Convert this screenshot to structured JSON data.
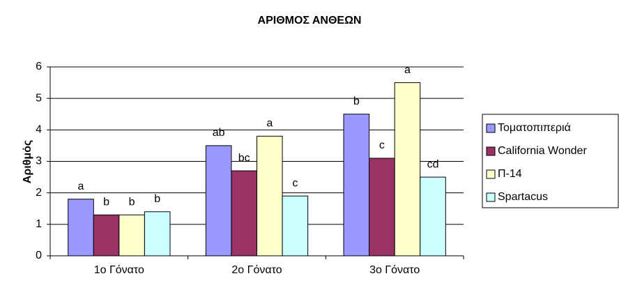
{
  "chart_data": {
    "type": "bar",
    "title": "ΑΡΙΘΜΟΣ ΑΝΘΕΩΝ",
    "y_label": "Αριθμός",
    "categories": [
      "1ο Γόνατο",
      "2ο Γόνατο",
      "3ο Γόνατο"
    ],
    "series": [
      {
        "name": "Τοματοπιπεριά",
        "color": "#9999ff",
        "values": [
          1.8,
          3.5,
          4.5
        ],
        "annotations": [
          "a",
          "ab",
          "b"
        ]
      },
      {
        "name": "California Wonder",
        "color": "#993366",
        "values": [
          1.3,
          2.7,
          3.1
        ],
        "annotations": [
          "b",
          "bc",
          "c"
        ]
      },
      {
        "name": "Π-14",
        "color": "#ffffcc",
        "values": [
          1.3,
          3.8,
          5.5
        ],
        "annotations": [
          "b",
          "a",
          "a"
        ]
      },
      {
        "name": "Spartacus",
        "color": "#ccffff",
        "values": [
          1.4,
          1.9,
          2.5
        ],
        "annotations": [
          "b",
          "c",
          "cd"
        ]
      }
    ],
    "ylim": [
      0,
      6
    ],
    "yticks": [
      0,
      1,
      2,
      3,
      4,
      5,
      6
    ],
    "grid": true,
    "legend": "right"
  }
}
